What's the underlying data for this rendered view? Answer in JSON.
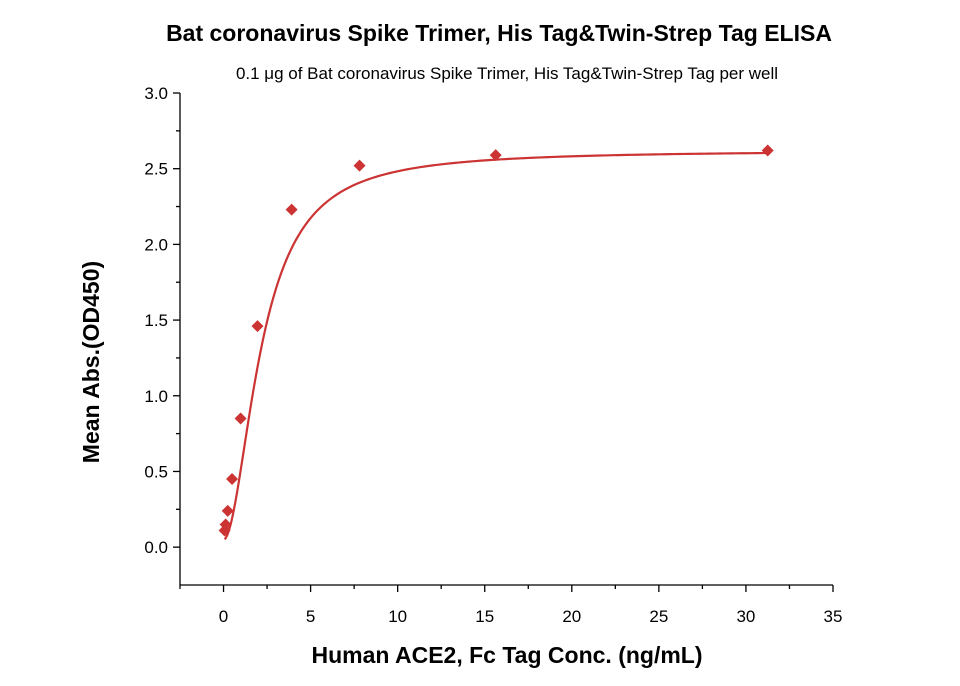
{
  "chart_data": {
    "type": "scatter",
    "title": "Bat coronavirus Spike Trimer, His Tag&Twin-Strep Tag ELISA",
    "subtitle": "0.1 μg of Bat coronavirus Spike Trimer, His Tag&Twin-Strep Tag per well",
    "xlabel": "Human ACE2, Fc Tag Conc. (ng/mL)",
    "ylabel": "Mean Abs.(OD450)",
    "xlim": [
      -2.5,
      35
    ],
    "ylim": [
      -0.25,
      3.0
    ],
    "x_ticks": [
      0,
      5,
      10,
      15,
      20,
      25,
      30,
      35
    ],
    "y_ticks": [
      0.0,
      0.5,
      1.0,
      1.5,
      2.0,
      2.5,
      3.0
    ],
    "x_tick_labels": [
      "0",
      "5",
      "10",
      "15",
      "20",
      "25",
      "30",
      "35"
    ],
    "y_tick_labels": [
      "0.0",
      "0.5",
      "1.0",
      "1.5",
      "2.0",
      "2.5",
      "3.0"
    ],
    "grid": false,
    "legend": "none",
    "marker": "diamond",
    "color": "#cc3333",
    "fit": "sigmoidal (4-parameter logistic)",
    "series": [
      {
        "x": [
          0.06,
          0.12,
          0.24,
          0.49,
          0.98,
          1.95,
          3.91,
          7.81,
          15.63,
          31.25
        ],
        "y": [
          0.11,
          0.15,
          0.24,
          0.45,
          0.85,
          1.46,
          2.23,
          2.52,
          2.59,
          2.62
        ]
      }
    ]
  }
}
